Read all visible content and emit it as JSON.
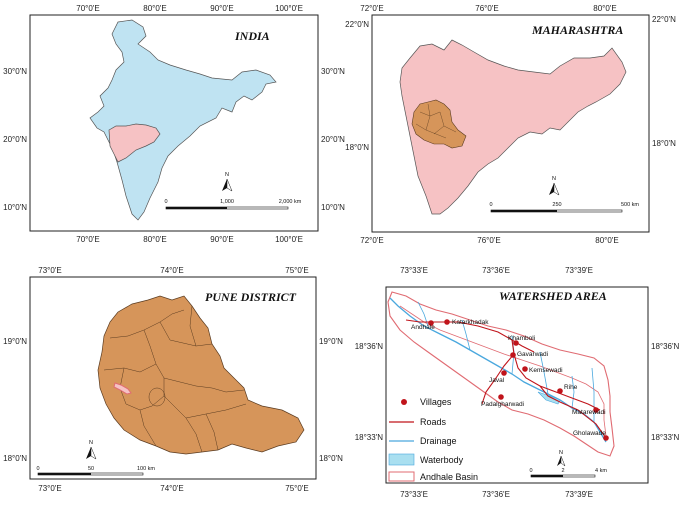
{
  "colors": {
    "india": "#bfe3f2",
    "maharashtra": "#f6c2c4",
    "pune": "#d6955a",
    "road": "#c0141b",
    "drainage": "#4aa8de",
    "waterbody": "#a9dff0",
    "basin": "#e06b72",
    "village": "#c0141b"
  },
  "india": {
    "title": "INDIA",
    "top_ticks": [
      "70°0'E",
      "80°0'E",
      "90°0'E",
      "100°0'E"
    ],
    "bottom_ticks": [
      "70°0'E",
      "80°0'E",
      "90°0'E",
      "100°0'E"
    ],
    "left_ticks": [
      "30°0'N",
      "20°0'N",
      "10°0'N"
    ],
    "right_ticks": [
      "30°0'N",
      "20°0'N",
      "10°0'N"
    ],
    "scale": [
      "0",
      "1,000",
      "2,000 km"
    ],
    "north": "N"
  },
  "maharashtra": {
    "title": "MAHARASHTRA",
    "top_ticks": [
      "72°0'E",
      "76°0'E",
      "80°0'E"
    ],
    "bottom_ticks": [
      "72°0'E",
      "76°0'E",
      "80°0'E"
    ],
    "left_ticks": [
      "22°0'N",
      "18°0'N"
    ],
    "right_ticks": [
      "22°0'N",
      "18°0'N"
    ],
    "scale": [
      "0",
      "250",
      "500 km"
    ],
    "north": "N"
  },
  "pune": {
    "title": "PUNE DISTRICT",
    "top_ticks": [
      "73°0'E",
      "74°0'E",
      "75°0'E"
    ],
    "bottom_ticks": [
      "73°0'E",
      "74°0'E",
      "75°0'E"
    ],
    "left_ticks": [
      "19°0'N",
      "18°0'N"
    ],
    "right_ticks": [
      "19°0'N",
      "18°0'N"
    ],
    "scale": [
      "0",
      "50",
      "100 km"
    ],
    "north": "N"
  },
  "watershed": {
    "title": "WATERSHED AREA",
    "top_ticks": [
      "73°33'E",
      "73°36'E",
      "73°39'E"
    ],
    "bottom_ticks": [
      "73°33'E",
      "73°36'E",
      "73°39'E"
    ],
    "right_ticks": [
      "18°36'N",
      "18°33'N"
    ],
    "left_ticks": [
      "18°36'N",
      "18°33'N"
    ],
    "scale": [
      "0",
      "2",
      "4 km"
    ],
    "north": "N",
    "villages": [
      "Andhale",
      "Katarkhadak",
      "Khamboli",
      "Gavarwadi",
      "Kemsewadi",
      "Javal",
      "Rihe",
      "Padalgharwadi",
      "Matarewadi",
      "Gholawade"
    ],
    "legend": [
      "Villages",
      "Roads",
      "Drainage",
      "Waterbody",
      "Andhale Basin"
    ]
  }
}
